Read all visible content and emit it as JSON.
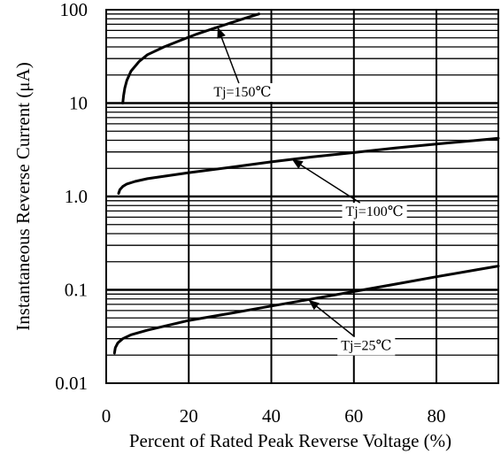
{
  "chart_data": {
    "type": "line",
    "title": "",
    "xlabel": "Percent of Rated Peak Reverse Voltage (%)",
    "ylabel": "Instantaneous Reverse Current (μA)",
    "x_scale": "linear",
    "y_scale": "log",
    "xlim": [
      0,
      95
    ],
    "ylim": [
      0.01,
      100
    ],
    "grid": true,
    "x_ticks": [
      0,
      20,
      40,
      60,
      80
    ],
    "x_tick_labels": [
      "0",
      "20",
      "40",
      "60",
      "80"
    ],
    "y_ticks": [
      0.01,
      0.1,
      1,
      10,
      100
    ],
    "y_tick_labels": [
      "0.01",
      "0.1",
      "1.0",
      "10",
      "100"
    ],
    "series": [
      {
        "name": "Tj=150℃",
        "x": [
          4,
          4.2,
          4.5,
          5,
          6,
          8,
          10,
          14,
          18,
          22,
          26,
          30,
          34,
          37
        ],
        "y": [
          10,
          12,
          14.5,
          17.5,
          22,
          28,
          33,
          40,
          47,
          55,
          63,
          72,
          82,
          90
        ]
      },
      {
        "name": "Tj=100℃",
        "x": [
          3,
          3.3,
          4,
          5,
          7,
          10,
          20,
          30,
          40,
          50,
          60,
          70,
          80,
          90,
          95
        ],
        "y": [
          1.08,
          1.18,
          1.28,
          1.36,
          1.45,
          1.55,
          1.8,
          2.05,
          2.35,
          2.65,
          2.95,
          3.3,
          3.65,
          4.0,
          4.2
        ]
      },
      {
        "name": "Tj=25℃",
        "x": [
          2,
          2.2,
          2.8,
          4,
          6,
          10,
          20,
          30,
          40,
          50,
          60,
          70,
          80,
          90,
          95
        ],
        "y": [
          0.021,
          0.024,
          0.027,
          0.03,
          0.033,
          0.037,
          0.047,
          0.056,
          0.067,
          0.08,
          0.096,
          0.115,
          0.138,
          0.165,
          0.18
        ]
      }
    ],
    "annotations": [
      {
        "text": "Tj=150℃",
        "series": 0,
        "point": [
          27,
          65
        ],
        "label_at": [
          33,
          13
        ]
      },
      {
        "text": "Tj=100℃",
        "series": 1,
        "point": [
          45,
          2.5
        ],
        "label_at": [
          65,
          0.68
        ]
      },
      {
        "text": "Tj=25℃",
        "series": 2,
        "point": [
          49,
          0.078
        ],
        "label_at": [
          63,
          0.025
        ]
      }
    ]
  }
}
